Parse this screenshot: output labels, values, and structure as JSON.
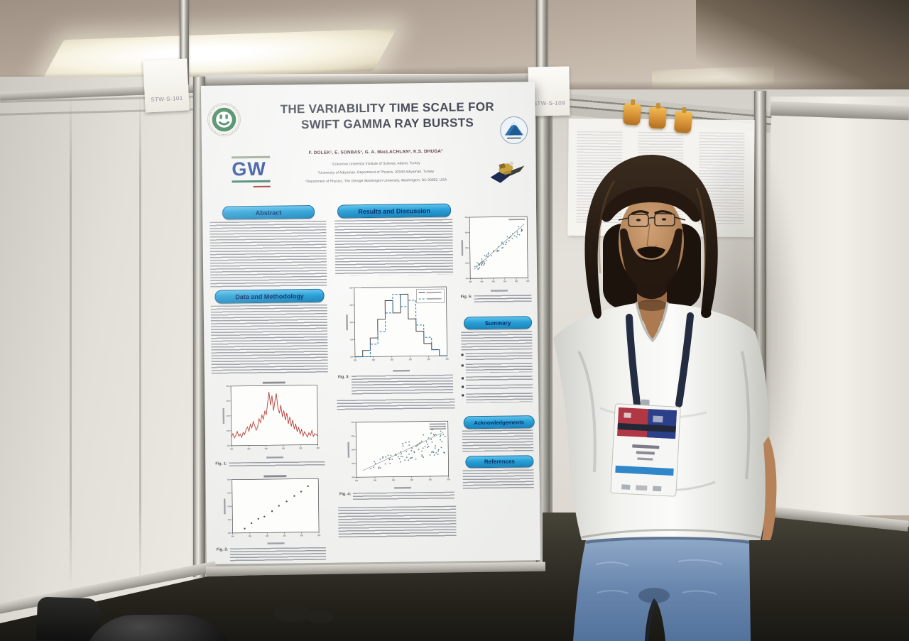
{
  "poster": {
    "title_line1": "THE VARIABILITY TIME SCALE FOR",
    "title_line2": "SWIFT GAMMA RAY BURSTS",
    "authors": "F. DOLEK¹, E. SONBAS¹, G. A. MacLACHLAN², K.S. DHUGA³",
    "affiliation1": "¹Cukurova University Institute of Science, Adana, Turkey",
    "affiliation2": "²University of Adiyaman, Department of Physics, 02040 Adiyaman, Turkey",
    "affiliation3": "³Department of Physics, The George Washington University, Washington, DC 20052, USA",
    "gw_logo_text": "GW",
    "sections": {
      "abstract": "Abstract",
      "data_methodology": "Data and Methodology",
      "results": "Results and Discussion",
      "summary": "Summary",
      "acknowledgements": "Acknowledgements",
      "references": "References"
    },
    "figures": [
      {
        "label": "Fig. 1:"
      },
      {
        "label": "Fig. 2:"
      },
      {
        "label": "Fig. 3:"
      },
      {
        "label": "Fig. 4:"
      },
      {
        "label": "Fig. 5:"
      }
    ]
  },
  "environment": {
    "panel_label_left": "STW-S-101",
    "panel_label_right": "STW-S-109"
  },
  "colors": {
    "section_pill_blue": "#2da3d8",
    "section_text_navy": "#0e2f6b",
    "lightcurve_red": "#b5342c",
    "histogram_blue": "#2a7fb8",
    "lanyard_navy": "#242c42",
    "badge_stripe_blue": "#2f86c8",
    "jeans_blue": "#7b99bd",
    "clip_yellow": "#e8a63c"
  },
  "charts": {
    "fig1": {
      "type": "line",
      "color": "#b5342c",
      "title_bar": true,
      "values": [
        0.12,
        0.18,
        0.1,
        0.15,
        0.22,
        0.13,
        0.17,
        0.11,
        0.2,
        0.16,
        0.25,
        0.3,
        0.22,
        0.35,
        0.28,
        0.4,
        0.32,
        0.24,
        0.3,
        0.45,
        0.38,
        0.52,
        0.44,
        0.6,
        0.52,
        0.75,
        0.95,
        0.7,
        0.88,
        0.6,
        0.78,
        0.92,
        0.65,
        0.55,
        0.7,
        0.48,
        0.6,
        0.42,
        0.55,
        0.35,
        0.48,
        0.3,
        0.42,
        0.25,
        0.35,
        0.2,
        0.28,
        0.16,
        0.24,
        0.12,
        0.2,
        0.15,
        0.1,
        0.18,
        0.13,
        0.22,
        0.11,
        0.16,
        0.14,
        0.12
      ]
    },
    "fig2": {
      "type": "scatter",
      "color": "#3f3f46",
      "title_bar": true,
      "points": [
        [
          0.14,
          0.08
        ],
        [
          0.22,
          0.18
        ],
        [
          0.3,
          0.26
        ],
        [
          0.37,
          0.3
        ],
        [
          0.46,
          0.4
        ],
        [
          0.54,
          0.5
        ],
        [
          0.63,
          0.58
        ],
        [
          0.72,
          0.68
        ],
        [
          0.8,
          0.76
        ],
        [
          0.88,
          0.86
        ]
      ]
    },
    "fig3": {
      "type": "hist",
      "legend": true,
      "series": [
        {
          "color": "#44444c",
          "bins": [
            0,
            1,
            3,
            6,
            9,
            7,
            10,
            6,
            4,
            2,
            1,
            0
          ]
        },
        {
          "color": "#2a7fb8",
          "dash": "3,2",
          "bins": [
            0,
            0,
            2,
            4,
            7,
            10,
            8,
            9,
            5,
            3,
            1,
            0
          ]
        }
      ]
    },
    "fig4": {
      "type": "cloud",
      "color": "#3a5f6e",
      "n": 95,
      "seed": 11,
      "trend": true,
      "legend_rows": 3
    },
    "fig5": {
      "type": "cloud",
      "color": "#46707e",
      "n": 60,
      "seed": 5,
      "trend": true,
      "tight": true,
      "legend_rows": 1
    }
  }
}
